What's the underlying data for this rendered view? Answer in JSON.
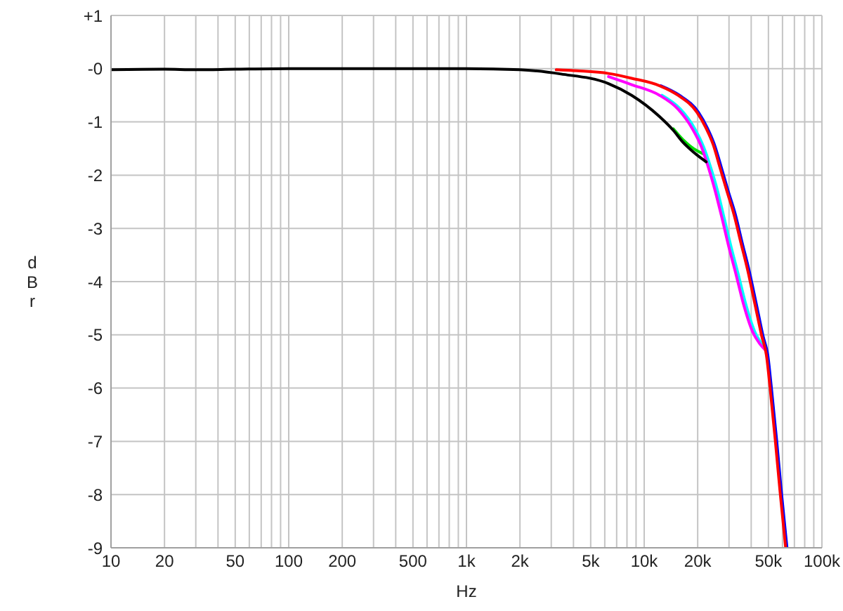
{
  "chart_data": {
    "type": "line",
    "xlabel": "Hz",
    "ylabel": "dBr",
    "log": "x",
    "grid": true,
    "xlim": [
      10,
      100000
    ],
    "ylim": [
      -9,
      1
    ],
    "xticks": [
      10,
      20,
      {
        "value": 30,
        "label": null
      },
      {
        "value": 40,
        "label": null
      },
      50,
      {
        "value": 60,
        "label": null
      },
      {
        "value": 70,
        "label": null
      },
      {
        "value": 80,
        "label": null
      },
      {
        "value": 90,
        "label": null
      },
      100,
      200,
      {
        "value": 300,
        "label": null
      },
      {
        "value": 400,
        "label": null
      },
      500,
      {
        "value": 600,
        "label": null
      },
      {
        "value": 700,
        "label": null
      },
      {
        "value": 800,
        "label": null
      },
      {
        "value": 900,
        "label": null
      },
      {
        "value": 1000,
        "label": "1k"
      },
      {
        "value": 2000,
        "label": "2k"
      },
      {
        "value": 3000,
        "label": null
      },
      {
        "value": 4000,
        "label": null
      },
      {
        "value": 5000,
        "label": "5k"
      },
      {
        "value": 6000,
        "label": null
      },
      {
        "value": 7000,
        "label": null
      },
      {
        "value": 8000,
        "label": null
      },
      {
        "value": 9000,
        "label": null
      },
      {
        "value": 10000,
        "label": "10k"
      },
      {
        "value": 20000,
        "label": "20k"
      },
      {
        "value": 30000,
        "label": null
      },
      {
        "value": 40000,
        "label": null
      },
      {
        "value": 50000,
        "label": "50k"
      },
      {
        "value": 60000,
        "label": null
      },
      {
        "value": 70000,
        "label": null
      },
      {
        "value": 80000,
        "label": null
      },
      {
        "value": 90000,
        "label": null
      },
      {
        "value": 100000,
        "label": "100k"
      }
    ],
    "yticks": [
      {
        "value": 1,
        "label": "+1"
      },
      {
        "value": 0,
        "label": "-0"
      },
      -1,
      -2,
      -3,
      -4,
      -5,
      -6,
      -7,
      -8,
      -9
    ],
    "series": [
      {
        "color": "#00dd00",
        "x": [
          14600,
          16500,
          18100,
          19800,
          21500,
          22000
        ],
        "values": [
          -1.13,
          -1.33,
          -1.45,
          -1.54,
          -1.6,
          -1.62
        ]
      },
      {
        "color": "#00ffff",
        "x": [
          12600,
          16000,
          19200,
          21600,
          23700,
          25900,
          28300,
          30900,
          34000,
          37200,
          41900,
          45600,
          48200
        ],
        "values": [
          -0.5,
          -0.76,
          -1.12,
          -1.47,
          -1.86,
          -2.3,
          -2.83,
          -3.36,
          -3.89,
          -4.41,
          -4.94,
          -5.16,
          -5.27
        ]
      },
      {
        "color": "#ff00ff",
        "x": [
          6300,
          8500,
          12200,
          15500,
          18600,
          21000,
          23000,
          25100,
          27500,
          30000,
          33000,
          36100,
          40700,
          44500,
          48200
        ],
        "values": [
          -0.15,
          -0.3,
          -0.5,
          -0.76,
          -1.12,
          -1.47,
          -1.86,
          -2.3,
          -2.83,
          -3.36,
          -3.89,
          -4.41,
          -4.94,
          -5.16,
          -5.29
        ]
      },
      {
        "color": "#0000ff",
        "x": [
          12400,
          15800,
          20200,
          22700,
          24800,
          27200,
          29700,
          32600,
          35600,
          39000,
          42700,
          46700,
          49600,
          52000,
          55600,
          59100,
          63600
        ],
        "values": [
          -0.32,
          -0.5,
          -0.82,
          -1.12,
          -1.42,
          -1.86,
          -2.3,
          -2.74,
          -3.27,
          -3.8,
          -4.41,
          -5.03,
          -5.38,
          -6.0,
          -6.97,
          -7.94,
          -9
        ]
      },
      {
        "color": "#ff0000",
        "x": [
          3200,
          4200,
          6300,
          8500,
          12200,
          15500,
          19800,
          22300,
          24400,
          26700,
          29200,
          32000,
          35000,
          38300,
          41900,
          45900,
          48700,
          51100,
          54600,
          58100,
          62500
        ],
        "values": [
          -0.02,
          -0.04,
          -0.09,
          -0.18,
          -0.32,
          -0.5,
          -0.82,
          -1.12,
          -1.42,
          -1.86,
          -2.3,
          -2.74,
          -3.27,
          -3.8,
          -4.41,
          -5.03,
          -5.38,
          -6.0,
          -6.97,
          -7.94,
          -9
        ]
      },
      {
        "color": "#000000",
        "x": [
          10,
          20,
          30,
          50,
          100,
          200,
          500,
          1000,
          2000,
          3400,
          6300,
          8500,
          12200,
          14600,
          16500,
          18100,
          19800,
          21300,
          22300
        ],
        "values": [
          -0.02,
          -0.01,
          -0.02,
          -0.01,
          0,
          0,
          0,
          0,
          -0.02,
          -0.1,
          -0.28,
          -0.5,
          -0.9,
          -1.16,
          -1.38,
          -1.51,
          -1.62,
          -1.7,
          -1.75
        ]
      }
    ]
  }
}
